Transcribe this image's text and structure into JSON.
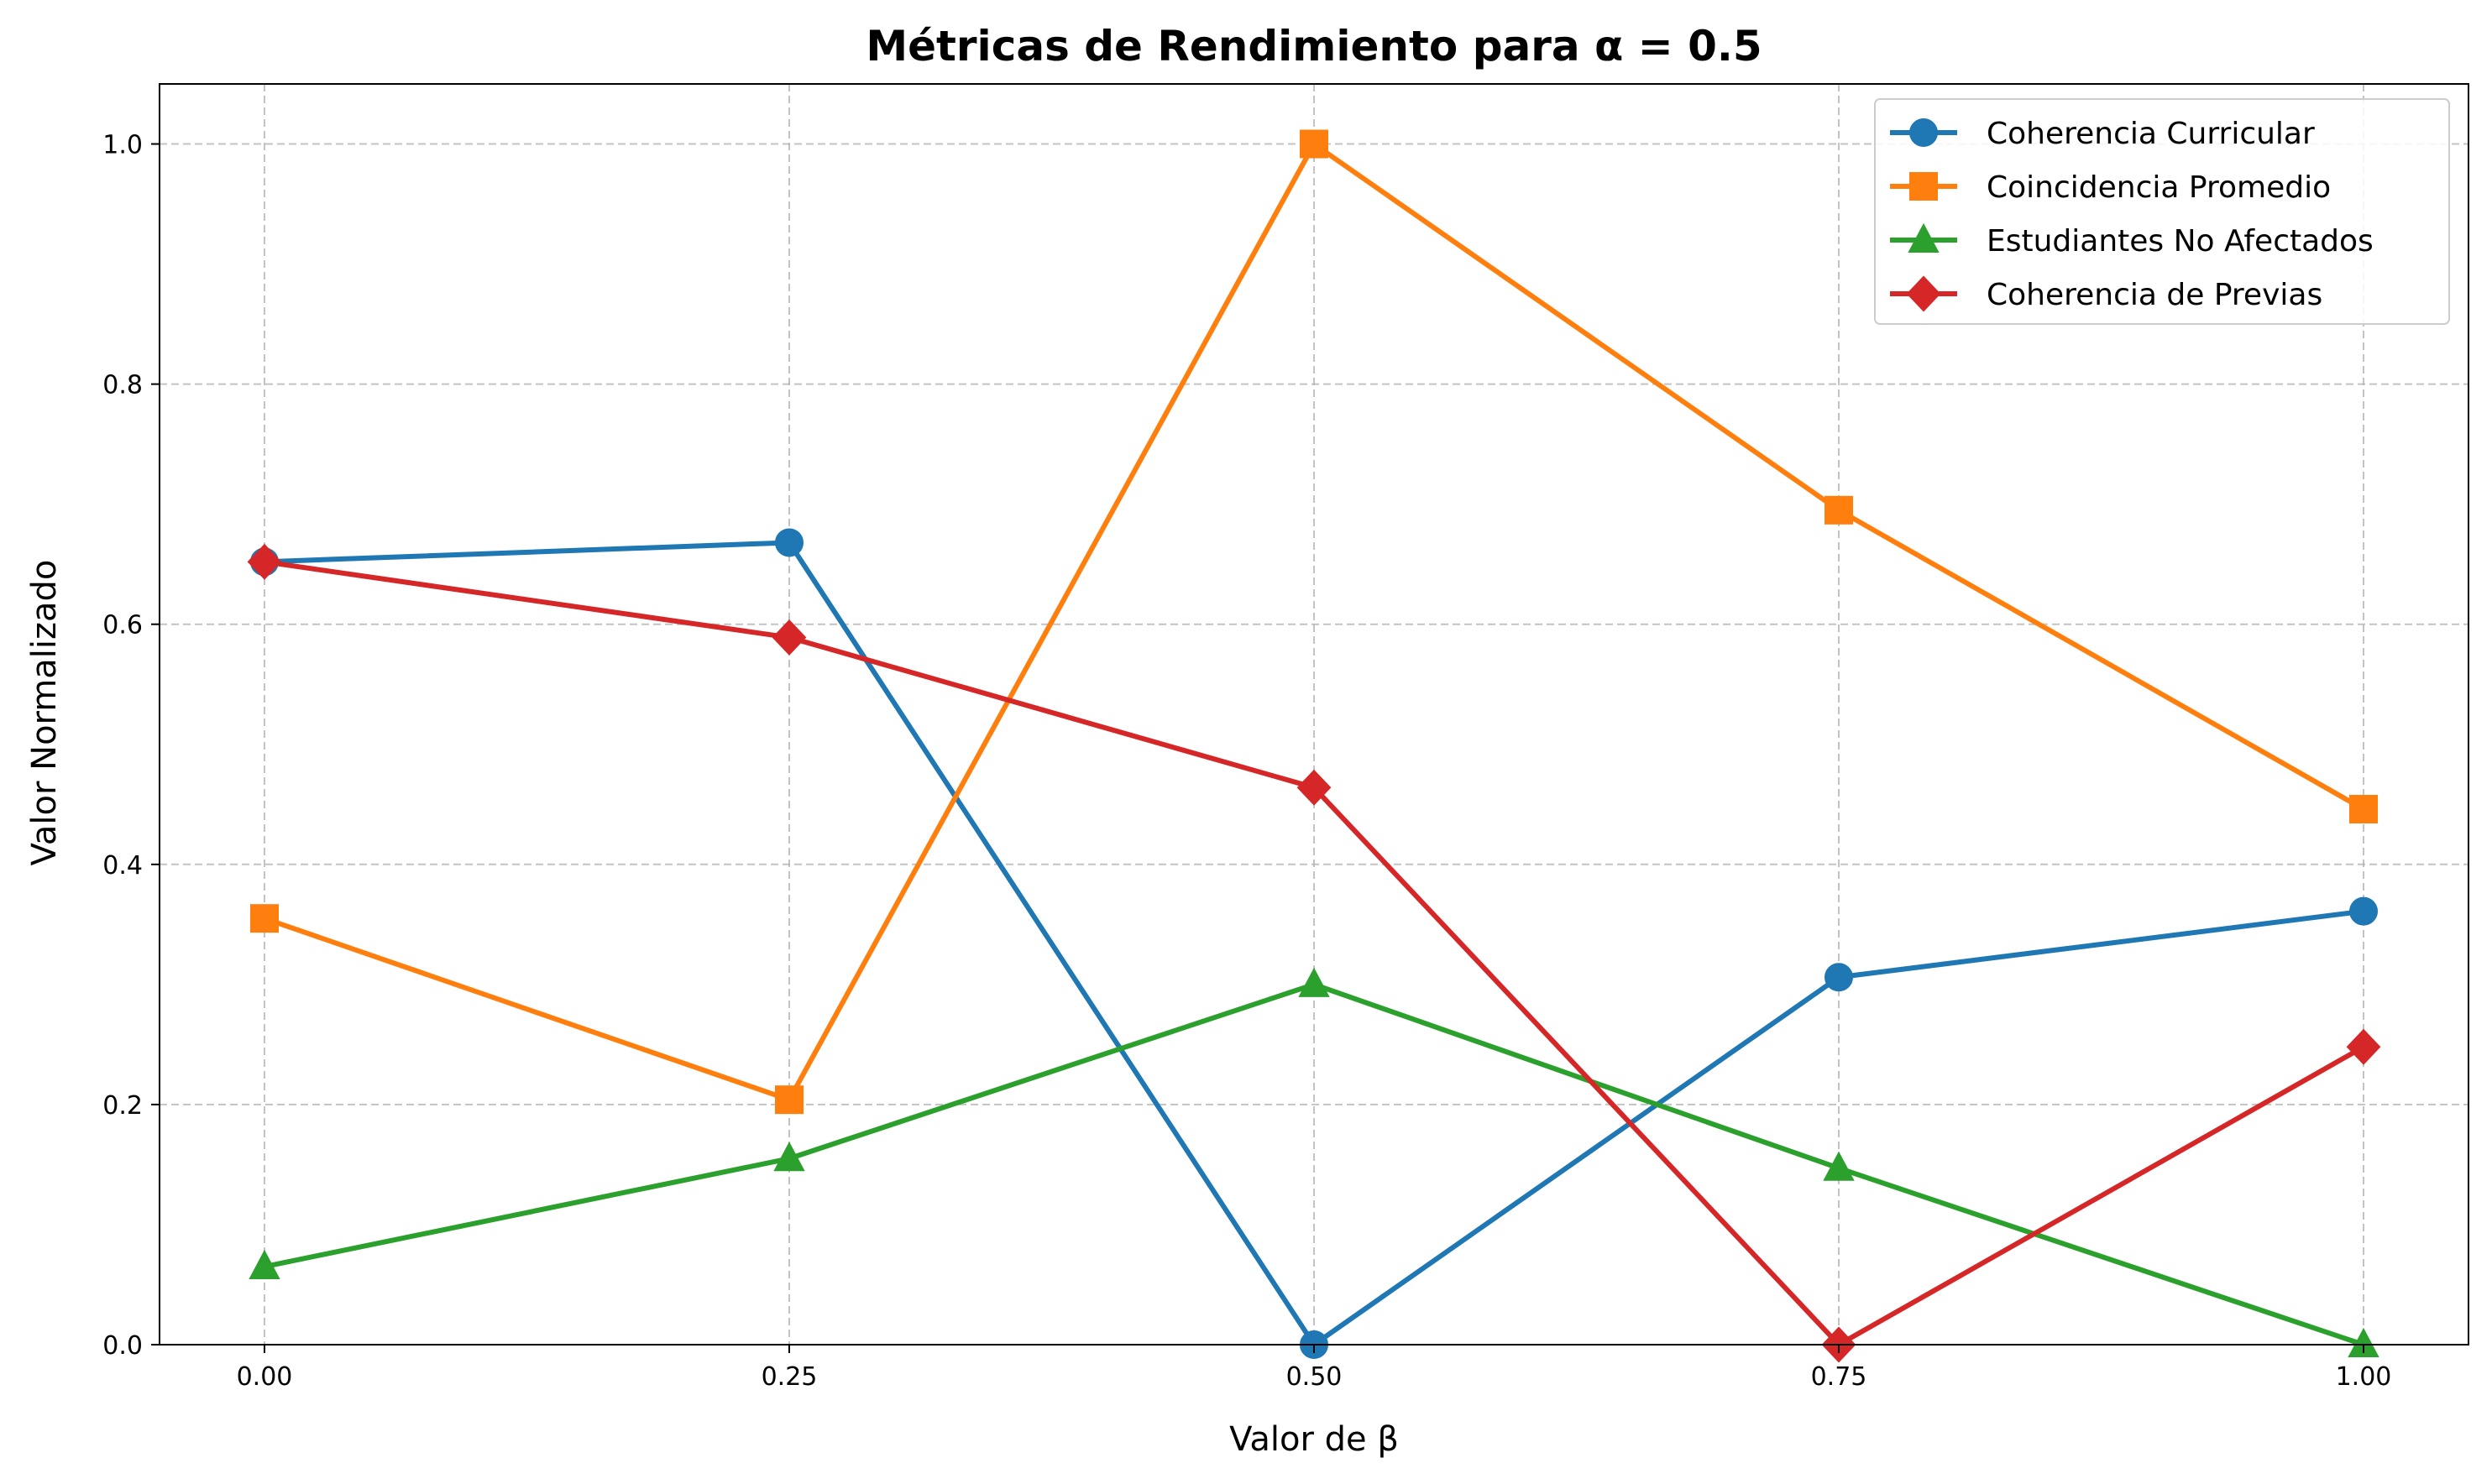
{
  "chart_data": {
    "type": "line",
    "title": "Métricas de Rendimiento para α = 0.5",
    "xlabel": "Valor de β",
    "ylabel": "Valor Normalizado",
    "x": [
      0.0,
      0.25,
      0.5,
      0.75,
      1.0
    ],
    "xticks": [
      "0.00",
      "0.25",
      "0.50",
      "0.75",
      "1.00"
    ],
    "yticks": [
      "0.0",
      "0.2",
      "0.4",
      "0.6",
      "0.8",
      "1.0"
    ],
    "xlim": [
      -0.05,
      1.05
    ],
    "ylim": [
      0.0,
      1.05
    ],
    "grid": true,
    "legend_position": "top-right",
    "series": [
      {
        "name": "Coherencia Curricular",
        "color": "#1f77b4",
        "marker": "circle",
        "values": [
          0.652,
          0.668,
          0.0,
          0.306,
          0.361
        ]
      },
      {
        "name": "Coincidencia Promedio",
        "color": "#ff7f0e",
        "marker": "square",
        "values": [
          0.355,
          0.204,
          1.0,
          0.695,
          0.446
        ]
      },
      {
        "name": "Estudiantes No Afectados",
        "color": "#2ca02c",
        "marker": "triangle",
        "values": [
          0.065,
          0.155,
          0.3,
          0.147,
          0.0
        ]
      },
      {
        "name": "Coherencia de Previas",
        "color": "#d62728",
        "marker": "diamond",
        "values": [
          0.652,
          0.589,
          0.464,
          0.0,
          0.248
        ]
      }
    ]
  }
}
